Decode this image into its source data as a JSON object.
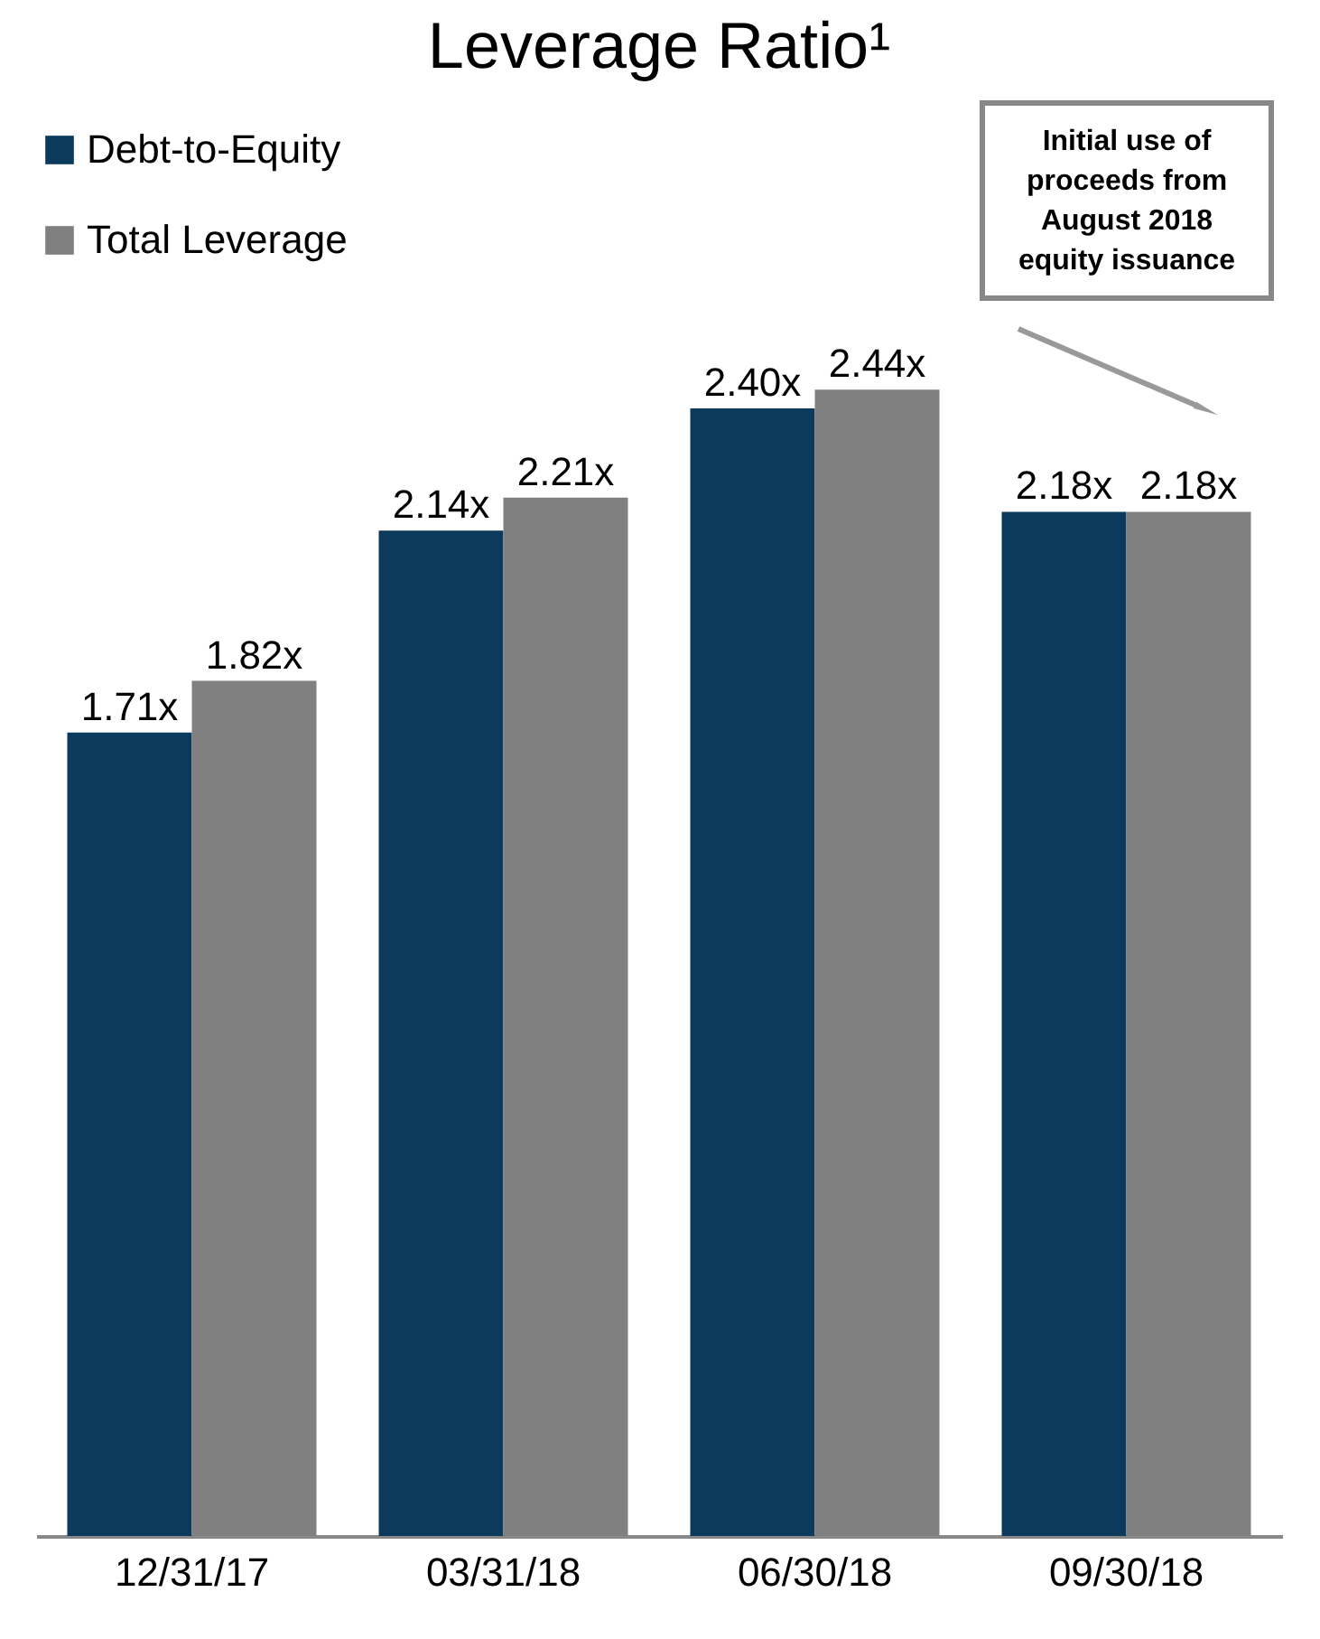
{
  "chart_data": {
    "type": "bar",
    "title": "Leverage Ratio¹",
    "categories": [
      "12/31/17",
      "03/31/18",
      "06/30/18",
      "09/30/18"
    ],
    "series": [
      {
        "name": "Debt-to-Equity",
        "color": "#0b3a5c",
        "values": [
          1.71,
          2.14,
          2.4,
          2.18
        ],
        "value_labels": [
          "1.71x",
          "2.14x",
          "2.40x",
          "2.18x"
        ]
      },
      {
        "name": "Total Leverage",
        "color": "#808080",
        "values": [
          1.82,
          2.21,
          2.44,
          2.18
        ],
        "value_labels": [
          "1.82x",
          "2.21x",
          "2.44x",
          "2.18x"
        ]
      }
    ],
    "ylim": [
      0,
      3.0
    ],
    "tick_labels": "x",
    "grid": false,
    "legend": "top left",
    "annotations": [
      "Initial use of proceeds from August 2018 equity issuance"
    ]
  }
}
